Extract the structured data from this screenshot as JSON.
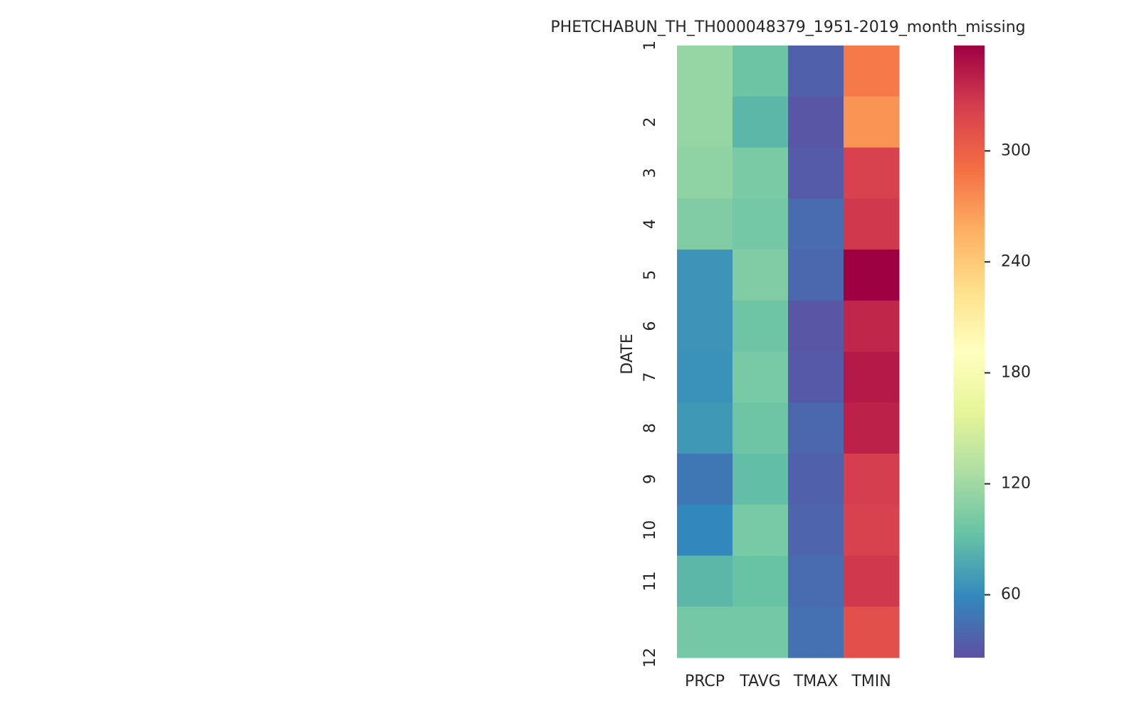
{
  "chart_data": {
    "type": "heatmap",
    "title": "PHETCHABUN_TH_TH000048379_1951-2019_month_missing",
    "ylabel": "DATE",
    "x_categories": [
      "PRCP",
      "TAVG",
      "TMAX",
      "TMIN"
    ],
    "y_categories": [
      "1",
      "2",
      "3",
      "4",
      "5",
      "6",
      "7",
      "8",
      "9",
      "10",
      "11",
      "12"
    ],
    "values": [
      [
        115,
        95,
        36,
        284
      ],
      [
        115,
        86,
        30,
        271
      ],
      [
        112,
        102,
        33,
        321
      ],
      [
        105,
        99,
        42,
        327
      ],
      [
        66,
        105,
        40,
        357
      ],
      [
        66,
        96,
        30,
        337
      ],
      [
        64,
        101,
        32,
        344
      ],
      [
        68,
        96,
        40,
        339
      ],
      [
        49,
        90,
        36,
        324
      ],
      [
        59,
        101,
        38,
        321
      ],
      [
        86,
        93,
        42,
        327
      ],
      [
        99,
        99,
        45,
        311
      ]
    ],
    "colormap": [
      "#5e4fa2",
      "#3288bd",
      "#66c2a5",
      "#abdda4",
      "#e6f598",
      "#ffffbf",
      "#fee08b",
      "#fdae61",
      "#f46d43",
      "#d53e4f",
      "#9e0142"
    ],
    "clim": [
      26,
      357
    ],
    "cticks": [
      60,
      120,
      180,
      240,
      300
    ]
  }
}
